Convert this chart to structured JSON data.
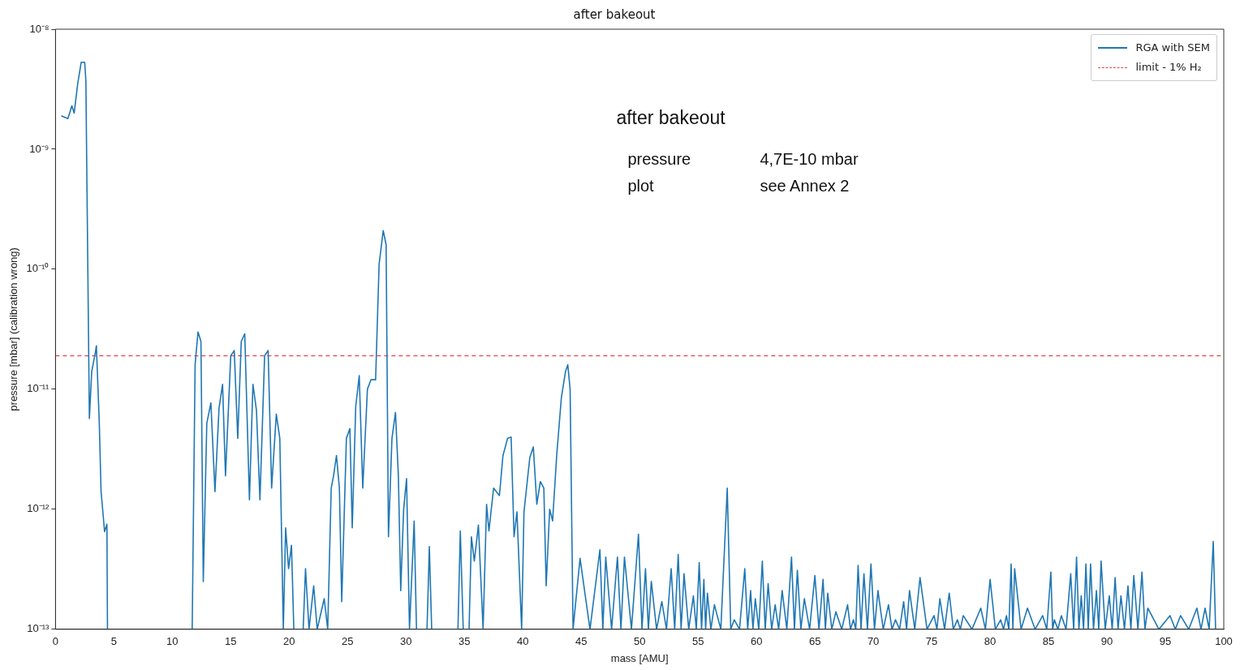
{
  "chart_data": {
    "type": "line",
    "title": "after bakeout",
    "xlabel": "mass [AMU]",
    "ylabel": "pressure [mbar] (calibration wrong)",
    "annotations": [
      "after bakeout",
      "pressure",
      "4,7E-10 mbar",
      "plot",
      "see Annex 2"
    ],
    "log": "y",
    "grid": false,
    "legend": "top right",
    "line_style": "solid",
    "marker": "none",
    "xlim": [
      0,
      100
    ],
    "xticks": [
      0,
      5,
      10,
      15,
      20,
      25,
      30,
      35,
      40,
      45,
      50,
      55,
      60,
      65,
      70,
      75,
      80,
      85,
      90,
      95,
      100
    ],
    "ylim": [
      1e-13,
      1e-08
    ],
    "yticks": [
      {
        "value": 1e-13,
        "label": "10⁻¹³"
      },
      {
        "value": 1e-12,
        "label": "10⁻¹²"
      },
      {
        "value": 1e-11,
        "label": "10⁻¹¹"
      },
      {
        "value": 1e-10,
        "label": "10⁻¹⁰"
      },
      {
        "value": 1e-09,
        "label": "10⁻⁹"
      },
      {
        "value": 1e-08,
        "label": "10⁻⁸"
      }
    ],
    "ref_lines": [
      {
        "axis": "y",
        "value": 1.9e-11,
        "label": "limit - 1% H₂",
        "color": "#e8474a",
        "line_style": "dashed"
      }
    ],
    "series": [
      {
        "name": "RGA with SEM",
        "color": "#1f77b4",
        "x": [
          0.5,
          1.06,
          1.4,
          1.6,
          1.9,
          2.2,
          2.5,
          2.6,
          2.9,
          3.1,
          3.4,
          3.5,
          3.75,
          3.9,
          4.0,
          4.2,
          4.4,
          4.45,
          8,
          11.7,
          11.95,
          12.2,
          12.45,
          12.65,
          12.95,
          13.3,
          13.65,
          14.0,
          14.3,
          14.55,
          15.0,
          15.3,
          15.6,
          15.9,
          16.2,
          16.6,
          16.9,
          17.2,
          17.5,
          17.9,
          18.2,
          18.5,
          18.9,
          19.2,
          19.5,
          19.7,
          19.95,
          20.2,
          20.4,
          21.2,
          21.4,
          21.7,
          22.1,
          22.4,
          23.0,
          23.3,
          23.6,
          23.8,
          24.05,
          24.3,
          24.5,
          24.9,
          25.2,
          25.4,
          25.7,
          26.0,
          26.3,
          26.7,
          27.0,
          27.4,
          27.7,
          28.05,
          28.3,
          28.5,
          28.8,
          29.1,
          29.35,
          29.55,
          29.8,
          30.05,
          30.3,
          30.7,
          30.9,
          31.8,
          32.0,
          32.2,
          34.45,
          34.65,
          34.9,
          35.4,
          35.6,
          35.85,
          36.2,
          36.6,
          36.9,
          37.1,
          37.5,
          38.0,
          38.3,
          38.7,
          39.0,
          39.25,
          39.5,
          39.9,
          40.1,
          40.6,
          40.9,
          41.2,
          41.5,
          41.8,
          42.0,
          42.3,
          42.55,
          42.9,
          43.3,
          43.65,
          43.85,
          44.05,
          44.3,
          44.9,
          45.75,
          46.6,
          46.85,
          47.1,
          47.6,
          48.1,
          48.4,
          48.7,
          49.3,
          49.9,
          50.2,
          50.5,
          50.75,
          51.0,
          51.45,
          51.9,
          52.3,
          52.7,
          53.0,
          53.3,
          53.55,
          53.8,
          54.2,
          54.6,
          54.85,
          55.1,
          55.3,
          55.5,
          55.65,
          55.8,
          56.1,
          56.4,
          56.95,
          57.5,
          57.8,
          58.1,
          58.55,
          59.0,
          59.25,
          59.5,
          59.7,
          59.9,
          60.2,
          60.5,
          60.75,
          61.0,
          61.3,
          61.6,
          61.9,
          62.2,
          62.6,
          63.0,
          63.25,
          63.5,
          63.8,
          64.1,
          64.55,
          65.0,
          65.35,
          65.7,
          65.9,
          66.1,
          66.45,
          66.8,
          67.3,
          67.8,
          68.05,
          68.3,
          68.5,
          68.7,
          68.95,
          69.2,
          69.5,
          69.8,
          70.1,
          70.4,
          70.85,
          71.3,
          71.6,
          71.9,
          72.25,
          72.6,
          72.85,
          73.1,
          73.55,
          74.0,
          74.6,
          75.2,
          75.45,
          75.7,
          76.1,
          76.5,
          76.85,
          77.2,
          77.45,
          77.7,
          78.45,
          79.2,
          79.6,
          80.0,
          80.45,
          80.9,
          81.15,
          81.4,
          81.6,
          81.8,
          81.95,
          82.1,
          82.65,
          83.2,
          83.85,
          84.5,
          84.85,
          85.2,
          85.35,
          85.5,
          85.8,
          86.1,
          86.5,
          86.9,
          87.15,
          87.4,
          87.6,
          87.8,
          88.0,
          88.2,
          88.4,
          88.6,
          88.85,
          89.1,
          89.3,
          89.5,
          89.85,
          90.2,
          90.45,
          90.7,
          90.95,
          91.2,
          91.5,
          91.8,
          92.05,
          92.3,
          92.65,
          93.0,
          93.25,
          93.5,
          94.45,
          95.4,
          95.85,
          96.3,
          97.0,
          97.7,
          98.05,
          98.4,
          98.75,
          99.1,
          99.3
        ],
        "values": [
          1.9e-09,
          1.8e-09,
          2.3e-09,
          2e-09,
          3.5e-09,
          5.3e-09,
          5.3e-09,
          3.7e-09,
          5.7e-12,
          1.4e-11,
          2e-11,
          2.3e-11,
          5.2e-12,
          1.4e-12,
          1.1e-12,
          6.5e-13,
          7.5e-13,
          1e-13,
          null,
          1e-13,
          1.6e-11,
          3e-11,
          2.5e-11,
          2.5e-13,
          5.2e-12,
          7.7e-12,
          1.4e-12,
          7e-12,
          1.1e-11,
          1.9e-12,
          1.9e-11,
          2.1e-11,
          3.9e-12,
          2.5e-11,
          2.9e-11,
          1.2e-12,
          1.1e-11,
          6.7e-12,
          1.2e-12,
          1.9e-11,
          2.1e-11,
          1.5e-12,
          6.2e-12,
          3.9e-12,
          1e-13,
          7e-13,
          3.2e-13,
          5e-13,
          1e-13,
          1e-13,
          3.2e-13,
          1e-13,
          2.3e-13,
          1e-13,
          1.8e-13,
          1e-13,
          1.5e-12,
          1.9e-12,
          2.8e-12,
          1.5e-12,
          1.7e-13,
          3.9e-12,
          4.7e-12,
          7e-13,
          7.2e-12,
          1.3e-11,
          1.5e-12,
          1e-11,
          1.2e-11,
          1.2e-11,
          1.1e-10,
          2.1e-10,
          1.6e-10,
          5.9e-13,
          3.9e-12,
          6.4e-12,
          1.9e-12,
          2.1e-13,
          1e-12,
          1.8e-12,
          1e-13,
          8e-13,
          1e-13,
          1e-13,
          4.9e-13,
          1e-13,
          1e-13,
          6.6e-13,
          1e-13,
          1e-13,
          5.9e-13,
          3.7e-13,
          7.4e-13,
          1e-13,
          1.1e-12,
          6.6e-13,
          1.5e-12,
          1.3e-12,
          2.8e-12,
          3.9e-12,
          4e-12,
          5.9e-13,
          9.5e-13,
          1e-13,
          9.5e-13,
          2.7e-12,
          3.3e-12,
          1.1e-12,
          1.7e-12,
          1.5e-12,
          2.3e-13,
          1e-12,
          8e-13,
          2.8e-12,
          8.5e-12,
          1.4e-11,
          1.6e-11,
          1e-11,
          1e-13,
          3.9e-13,
          1e-13,
          4.6e-13,
          1e-13,
          4e-13,
          1e-13,
          4e-13,
          1e-13,
          4e-13,
          1e-13,
          6.2e-13,
          1e-13,
          3.2e-13,
          1e-13,
          2.5e-13,
          1e-13,
          1.7e-13,
          1e-13,
          3.2e-13,
          1e-13,
          4.2e-13,
          1e-13,
          2.9e-13,
          1e-13,
          1.9e-13,
          1e-13,
          3.6e-13,
          1e-13,
          2.6e-13,
          1e-13,
          2e-13,
          1e-13,
          1.6e-13,
          1e-13,
          1.5e-12,
          1e-13,
          1.2e-13,
          1e-13,
          3.2e-13,
          1e-13,
          2.1e-13,
          1e-13,
          1.8e-13,
          1e-13,
          3.7e-13,
          1e-13,
          2.4e-13,
          1e-13,
          1.6e-13,
          1e-13,
          2.1e-13,
          1e-13,
          4e-13,
          1e-13,
          3.1e-13,
          1e-13,
          1.8e-13,
          1e-13,
          2.8e-13,
          1e-13,
          2.6e-13,
          1e-13,
          2e-13,
          1e-13,
          1.4e-13,
          1e-13,
          1.6e-13,
          1e-13,
          1.2e-13,
          1e-13,
          3.4e-13,
          1e-13,
          2.9e-13,
          1e-13,
          3.5e-13,
          1e-13,
          2.1e-13,
          1e-13,
          1.6e-13,
          1e-13,
          1.2e-13,
          1e-13,
          1.7e-13,
          1e-13,
          2.1e-13,
          1e-13,
          2.7e-13,
          1e-13,
          1.3e-13,
          1e-13,
          1.8e-13,
          1e-13,
          2e-13,
          1e-13,
          1.2e-13,
          1e-13,
          1.3e-13,
          1e-13,
          1.5e-13,
          1e-13,
          2.6e-13,
          1e-13,
          1.2e-13,
          1e-13,
          1.3e-13,
          1e-13,
          3.5e-13,
          1e-13,
          3.2e-13,
          1e-13,
          1.5e-13,
          1e-13,
          1.3e-13,
          1e-13,
          3e-13,
          1e-13,
          1.2e-13,
          1e-13,
          1.3e-13,
          1e-13,
          2.9e-13,
          1e-13,
          4e-13,
          1e-13,
          1.9e-13,
          1e-13,
          3.5e-13,
          1e-13,
          3.5e-13,
          1e-13,
          2.1e-13,
          1e-13,
          3.7e-13,
          1e-13,
          1.9e-13,
          1e-13,
          2.7e-13,
          1e-13,
          1.9e-13,
          1e-13,
          2.3e-13,
          1e-13,
          2.8e-13,
          1e-13,
          3e-13,
          1e-13,
          1.5e-13,
          1e-13,
          1.3e-13,
          1e-13,
          1.3e-13,
          1e-13,
          1.5e-13,
          1e-13,
          1.5e-13,
          1e-13,
          5.4e-13,
          1e-13
        ]
      }
    ]
  }
}
